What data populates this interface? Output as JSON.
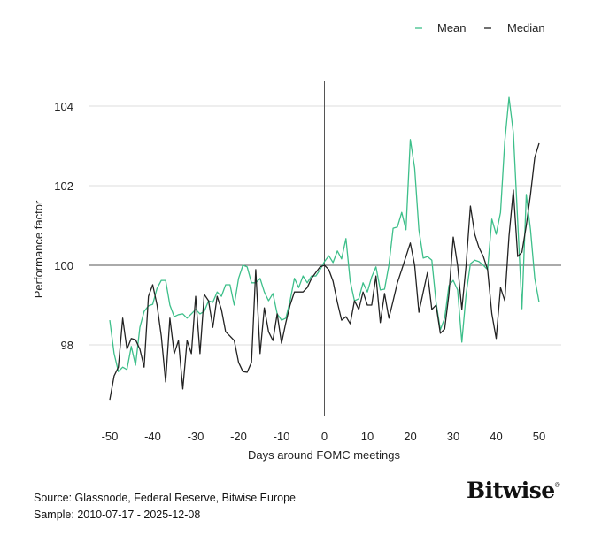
{
  "chart_data": {
    "type": "line",
    "xlabel": "Days around FOMC meetings",
    "ylabel": "Performance factor",
    "xlim": [
      -50,
      50
    ],
    "ylim": [
      96.2,
      104.7
    ],
    "x_ticks": [
      -50,
      -40,
      -30,
      -20,
      -10,
      0,
      10,
      20,
      30,
      40,
      50
    ],
    "y_ticks": [
      98,
      100,
      102,
      104
    ],
    "grid": "horizontal",
    "reference_lines": {
      "y": 100,
      "x": 0
    },
    "legend": "top-right",
    "x_start": -50,
    "series": [
      {
        "name": "Mean",
        "color": "#3dbf8a",
        "values": [
          98.62,
          97.78,
          97.33,
          97.44,
          97.38,
          97.96,
          97.49,
          98.44,
          98.84,
          98.98,
          99.02,
          99.42,
          99.62,
          99.62,
          99.0,
          98.71,
          98.76,
          98.78,
          98.67,
          98.78,
          98.89,
          98.78,
          98.84,
          99.11,
          99.07,
          99.33,
          99.22,
          99.51,
          99.51,
          99.0,
          99.67,
          100.0,
          99.96,
          99.56,
          99.56,
          99.67,
          99.33,
          99.11,
          99.29,
          98.78,
          98.62,
          98.67,
          99.11,
          99.67,
          99.44,
          99.73,
          99.56,
          99.73,
          99.73,
          99.89,
          100.09,
          100.24,
          100.07,
          100.36,
          100.16,
          100.67,
          99.6,
          99.11,
          99.16,
          99.56,
          99.33,
          99.71,
          99.96,
          99.38,
          99.4,
          100.0,
          100.93,
          100.96,
          101.33,
          100.89,
          103.16,
          102.44,
          100.89,
          100.18,
          100.22,
          100.13,
          99.07,
          98.38,
          98.67,
          99.49,
          99.62,
          99.38,
          98.07,
          99.27,
          100.04,
          100.13,
          100.09,
          100.0,
          99.89,
          101.16,
          100.78,
          101.33,
          103.11,
          104.22,
          103.33,
          101.11,
          98.91,
          101.78,
          100.89,
          99.67,
          99.07
        ]
      },
      {
        "name": "Median",
        "color": "#222222",
        "values": [
          96.62,
          97.22,
          97.44,
          98.67,
          97.89,
          98.16,
          98.13,
          97.89,
          97.44,
          99.22,
          99.51,
          99.0,
          98.22,
          97.07,
          98.67,
          97.78,
          98.11,
          96.89,
          98.11,
          97.78,
          99.22,
          97.78,
          99.27,
          99.11,
          98.44,
          99.22,
          98.89,
          98.33,
          98.22,
          98.11,
          97.56,
          97.33,
          97.31,
          97.56,
          99.89,
          97.78,
          98.93,
          98.33,
          98.11,
          98.78,
          98.04,
          98.56,
          99.0,
          99.33,
          99.33,
          99.33,
          99.44,
          99.67,
          99.82,
          99.96,
          100.0,
          99.89,
          99.6,
          99.07,
          98.62,
          98.71,
          98.53,
          99.11,
          98.89,
          99.33,
          99.0,
          99.0,
          99.73,
          98.56,
          99.29,
          98.67,
          99.11,
          99.56,
          99.89,
          100.22,
          100.56,
          100.0,
          98.82,
          99.33,
          99.82,
          98.89,
          99.0,
          98.29,
          98.4,
          99.27,
          100.71,
          100.0,
          98.89,
          100.0,
          101.49,
          100.78,
          100.44,
          100.22,
          99.89,
          98.78,
          98.16,
          99.44,
          99.11,
          100.73,
          101.89,
          100.22,
          100.33,
          101.0,
          101.78,
          102.71,
          103.07
        ]
      }
    ]
  },
  "footer": {
    "source": "Source: Glassnode, Federal Reserve, Bitwise Europe",
    "sample": "Sample: 2010-07-17 - 2025-12-08"
  },
  "logo": {
    "text": "Bitwise",
    "mark": "®"
  }
}
